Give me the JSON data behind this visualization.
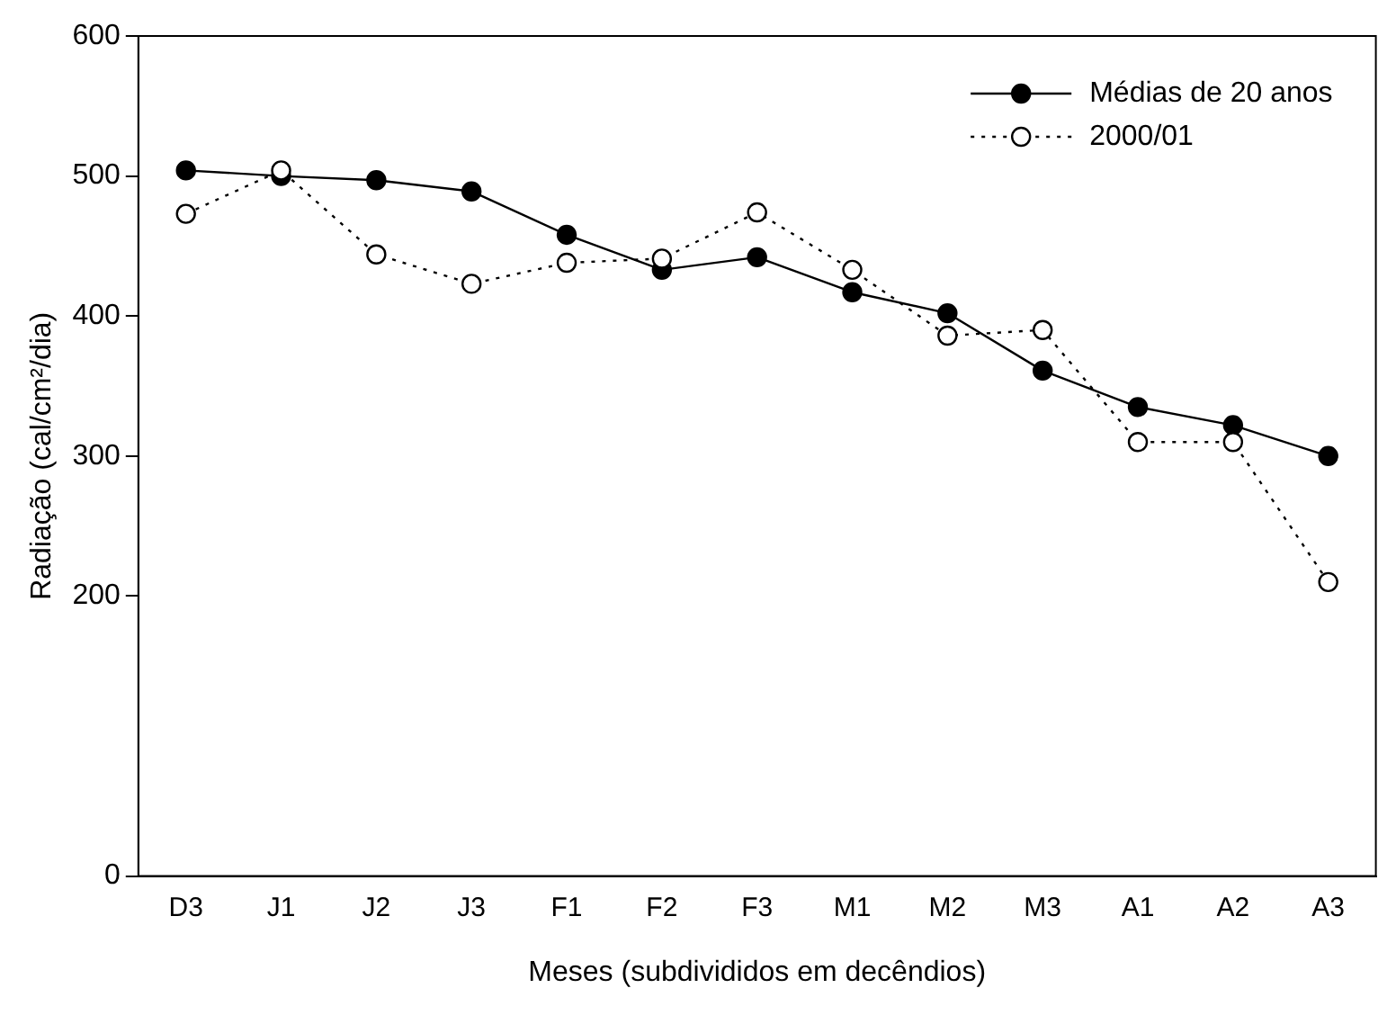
{
  "chart_data": {
    "type": "line",
    "xlabel": "Meses (subdivididos em decêndios)",
    "ylabel": "Radiação (cal/cm²/dia)",
    "categories": [
      "D3",
      "J1",
      "J2",
      "J3",
      "F1",
      "F2",
      "F3",
      "M1",
      "M2",
      "M3",
      "A1",
      "A2",
      "A3"
    ],
    "series": [
      {
        "name": "Médias de 20 anos",
        "color": "#000000",
        "line_style": "solid",
        "values": [
          504,
          500,
          497,
          489,
          458,
          433,
          442,
          417,
          402,
          361,
          335,
          322,
          300
        ]
      },
      {
        "name": "2000/01",
        "color": "#000000",
        "line_style": "dotted",
        "values": [
          473,
          504,
          444,
          423,
          438,
          441,
          474,
          433,
          386,
          390,
          310,
          310,
          210
        ]
      }
    ],
    "ylim": [
      0,
      600
    ],
    "yticks": [
      0,
      200,
      300,
      400,
      500,
      600
    ],
    "grid": false,
    "legend": "top right",
    "marker": "circle"
  }
}
